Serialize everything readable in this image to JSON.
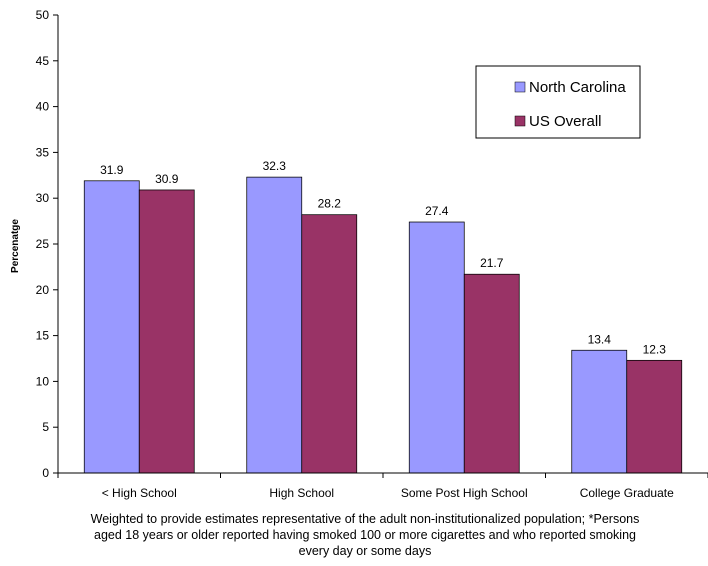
{
  "chart_data": {
    "type": "bar",
    "categories": [
      "< High School",
      "High School",
      "Some Post High School",
      "College Graduate"
    ],
    "series": [
      {
        "name": "North Carolina",
        "values": [
          31.9,
          32.3,
          27.4,
          13.4
        ],
        "color": "#9999ff"
      },
      {
        "name": "US Overall",
        "values": [
          30.9,
          28.2,
          21.7,
          12.3
        ],
        "color": "#993366"
      }
    ],
    "ylabel": "Percenatge",
    "ylim": [
      0,
      50
    ],
    "yticks": [
      0,
      5,
      10,
      15,
      20,
      25,
      30,
      35,
      40,
      45,
      50
    ],
    "grid": false,
    "legend_position": "top-right",
    "note": "Weighted to provide estimates representative of the adult non-institutionalized population; *Persons aged 18 years or older reported having smoked 100 or more cigarettes and who reported smoking every day or some days"
  }
}
